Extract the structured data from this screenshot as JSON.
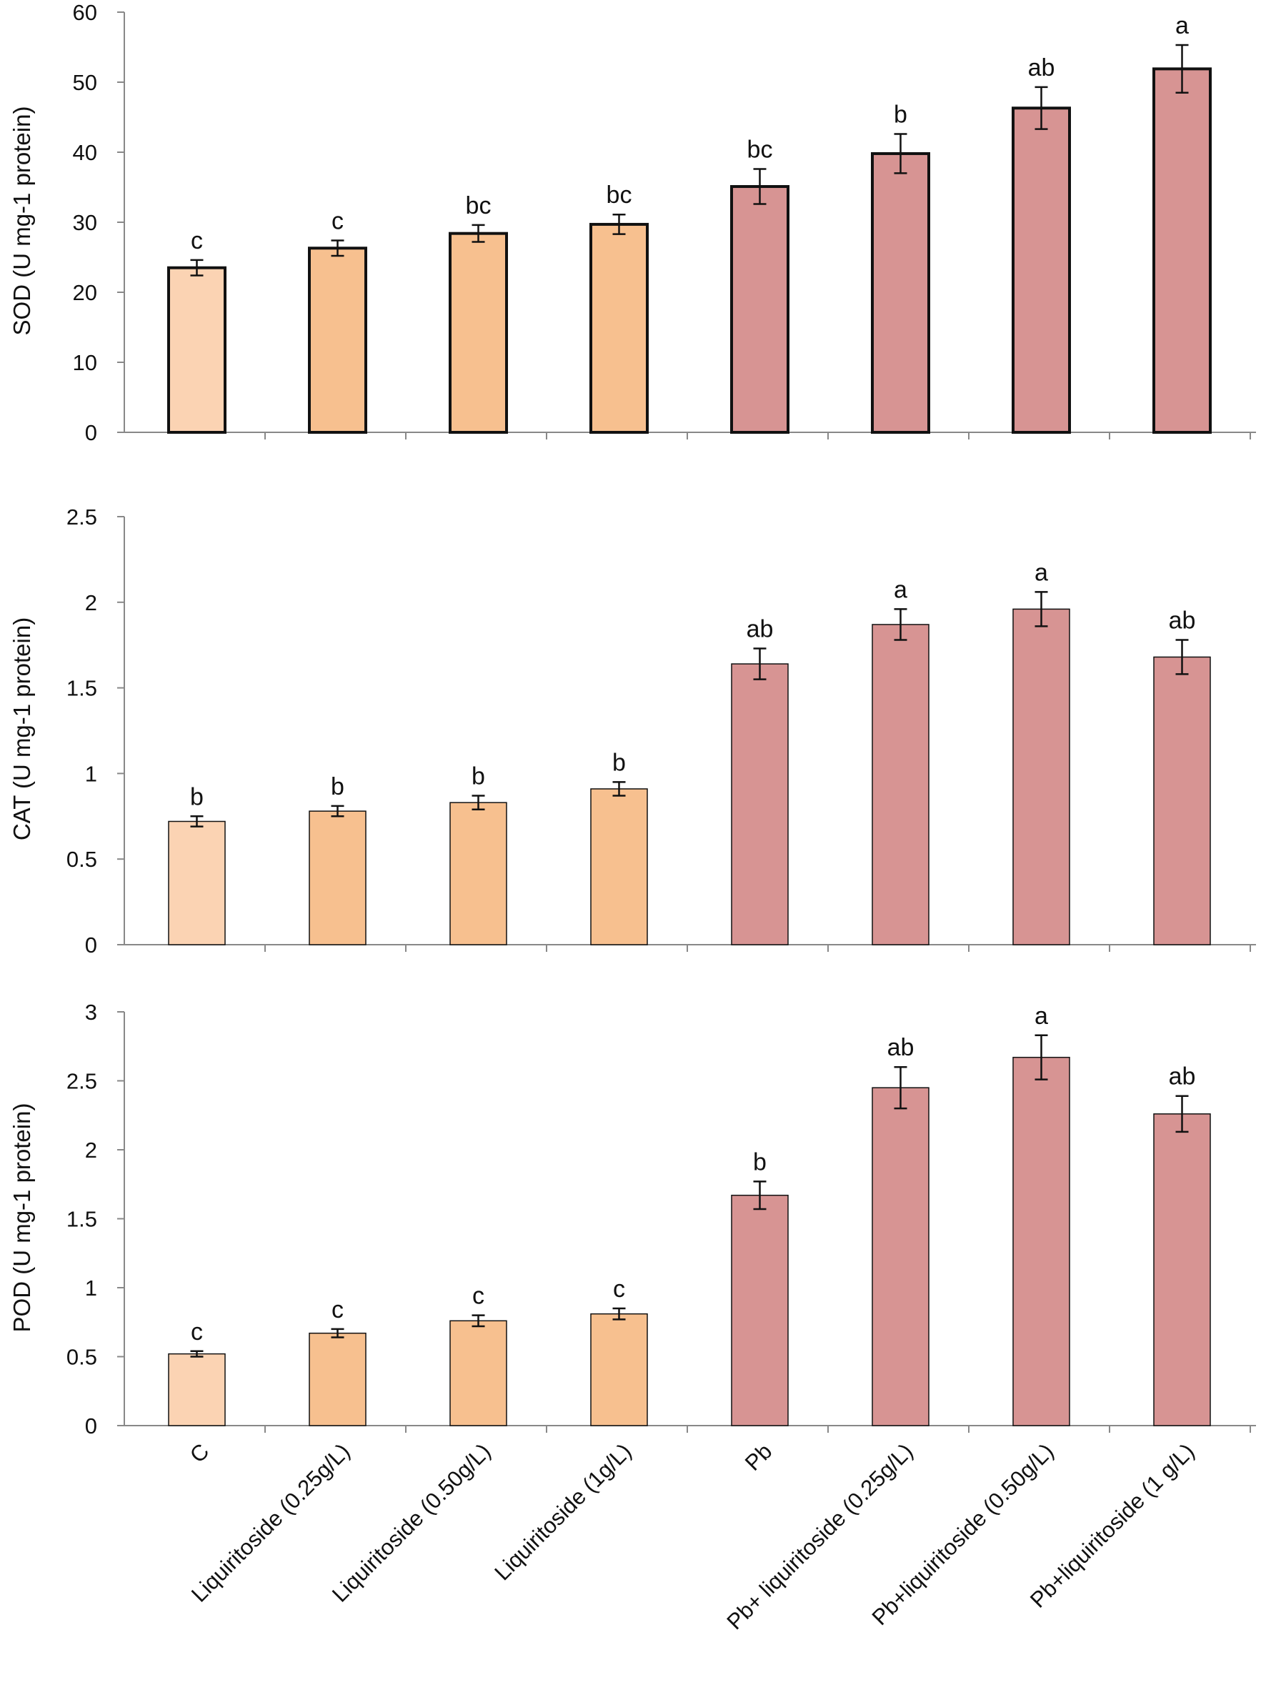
{
  "colors": {
    "control": "#fbd3b3",
    "liquiritoside": "#f7c08f",
    "lead": "#d79493",
    "axis": "#888888",
    "error_bar": "#111111"
  },
  "categories": [
    "C",
    "Liquiritoside (0.25g/L)",
    "Liquiritoside (0.50g/L)",
    "Liquiritoside (1g/L)",
    "Pb",
    "Pb+ liquiritoside (0.25g/L)",
    "Pb+liquiritoside (0.50g/L)",
    "Pb+liquiritoside (1 g/L)"
  ],
  "chart_data": [
    {
      "type": "bar",
      "id": "sod",
      "ylabel": "SOD (U mg-1 protein)",
      "ylim": [
        0,
        60
      ],
      "yticks": [
        "0",
        "10",
        "20",
        "30",
        "40",
        "50",
        "60"
      ],
      "ytick_values": [
        0,
        10,
        20,
        30,
        40,
        50,
        60
      ],
      "bar_outline": "bold",
      "values": [
        23.5,
        26.3,
        28.4,
        29.7,
        35.1,
        39.8,
        46.3,
        51.9
      ],
      "errors": [
        1.1,
        1.1,
        1.2,
        1.4,
        2.5,
        2.8,
        3.0,
        3.4
      ],
      "letters": [
        "c",
        "c",
        "bc",
        "bc",
        "bc",
        "b",
        "ab",
        "a"
      ],
      "bar_colors": [
        "control",
        "liquiritoside",
        "liquiritoside",
        "liquiritoside",
        "lead",
        "lead",
        "lead",
        "lead"
      ]
    },
    {
      "type": "bar",
      "id": "cat",
      "ylabel": "CAT (U mg-1 protein)",
      "ylim": [
        0,
        2.5
      ],
      "yticks": [
        "0",
        "0.5",
        "1",
        "1.5",
        "2",
        "2.5"
      ],
      "ytick_values": [
        0,
        0.5,
        1,
        1.5,
        2,
        2.5
      ],
      "bar_outline": "thin",
      "values": [
        0.72,
        0.78,
        0.83,
        0.91,
        1.64,
        1.87,
        1.96,
        1.68
      ],
      "errors": [
        0.03,
        0.03,
        0.04,
        0.04,
        0.09,
        0.09,
        0.1,
        0.1
      ],
      "letters": [
        "b",
        "b",
        "b",
        "b",
        "ab",
        "a",
        "a",
        "ab"
      ],
      "bar_colors": [
        "control",
        "liquiritoside",
        "liquiritoside",
        "liquiritoside",
        "lead",
        "lead",
        "lead",
        "lead"
      ]
    },
    {
      "type": "bar",
      "id": "pod",
      "ylabel": "POD (U mg-1 protein)",
      "ylim": [
        0,
        3
      ],
      "yticks": [
        "0",
        "0.5",
        "1",
        "1.5",
        "2",
        "2.5",
        "3"
      ],
      "ytick_values": [
        0,
        0.5,
        1,
        1.5,
        2,
        2.5,
        3
      ],
      "bar_outline": "thin",
      "values": [
        0.52,
        0.67,
        0.76,
        0.81,
        1.67,
        2.45,
        2.67,
        2.26
      ],
      "errors": [
        0.02,
        0.03,
        0.04,
        0.04,
        0.1,
        0.15,
        0.16,
        0.13
      ],
      "letters": [
        "c",
        "c",
        "c",
        "c",
        "b",
        "ab",
        "a",
        "ab"
      ],
      "bar_colors": [
        "control",
        "liquiritoside",
        "liquiritoside",
        "liquiritoside",
        "lead",
        "lead",
        "lead",
        "lead"
      ]
    }
  ]
}
